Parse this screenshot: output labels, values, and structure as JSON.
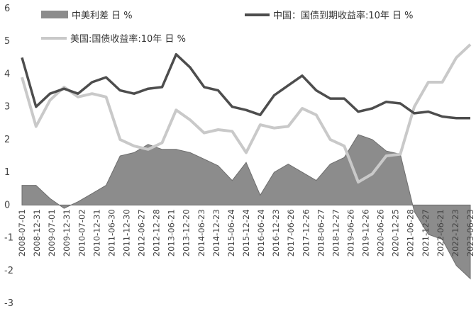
{
  "chart_data": {
    "type": "area",
    "title": "",
    "xlabel": "",
    "ylabel": "",
    "ylim": [
      -3,
      6
    ],
    "yticks": [
      "6",
      "5",
      "4",
      "3",
      "2",
      "1",
      "0",
      "-1",
      "-2",
      "-3"
    ],
    "xticks": [
      "2008-07-01",
      "2008-12-31",
      "2009-07-01",
      "2009-12-31",
      "2010-07-02",
      "2010-12-31",
      "2011-06-30",
      "2011-12-30",
      "2012-06-27",
      "2012-12-28",
      "2013-06-21",
      "2013-12-20",
      "2014-06-23",
      "2014-12-23",
      "2015-06-24",
      "2015-12-24",
      "2016-06-24",
      "2016-12-23",
      "2017-06-26",
      "2017-12-26",
      "2018-06-27",
      "2018-12-27",
      "2019-06-26",
      "2019-12-26",
      "2020-06-26",
      "2020-12-25",
      "2021-06-28",
      "2021-12-27",
      "2022-06-21",
      "2022-12-23",
      "2023-06-23"
    ],
    "legend": {
      "spread": "中美利差 日 %",
      "china": "中国：国债到期收益率:10年 日 %",
      "us": "美国:国债收益率:10年 日 %"
    },
    "colors": {
      "spread": "#8c8c8c",
      "china": "#4d4d4d",
      "us": "#c9c9c9"
    },
    "series": [
      {
        "key": "china",
        "name": "中国：国债到期收益率:10年 日 %",
        "values": [
          4.5,
          3.0,
          3.4,
          3.55,
          3.4,
          3.75,
          3.9,
          3.5,
          3.4,
          3.55,
          3.6,
          4.6,
          4.2,
          3.6,
          3.5,
          3.0,
          2.9,
          2.75,
          3.35,
          3.65,
          3.95,
          3.5,
          3.25,
          3.25,
          2.85,
          2.95,
          3.15,
          3.1,
          2.8,
          2.85,
          2.7,
          2.65,
          2.65
        ]
      },
      {
        "key": "us",
        "name": "美国:国债收益率:10年 日 %",
        "values": [
          3.9,
          2.4,
          3.2,
          3.6,
          3.3,
          3.4,
          3.3,
          2.0,
          1.8,
          1.7,
          1.9,
          2.9,
          2.6,
          2.2,
          2.3,
          2.25,
          1.6,
          2.45,
          2.35,
          2.4,
          2.95,
          2.75,
          2.0,
          1.8,
          0.7,
          0.95,
          1.5,
          1.55,
          3.0,
          3.75,
          3.75,
          4.5,
          4.9
        ]
      },
      {
        "key": "spread",
        "name": "中美利差 日 %",
        "values": [
          0.6,
          0.6,
          0.2,
          -0.1,
          0.1,
          0.35,
          0.6,
          1.5,
          1.6,
          1.85,
          1.7,
          1.7,
          1.6,
          1.4,
          1.2,
          0.75,
          1.3,
          0.3,
          1.0,
          1.25,
          1.0,
          0.75,
          1.25,
          1.45,
          2.15,
          2.0,
          1.65,
          1.55,
          -0.2,
          -0.9,
          -1.05,
          -1.85,
          -2.25
        ]
      }
    ]
  }
}
